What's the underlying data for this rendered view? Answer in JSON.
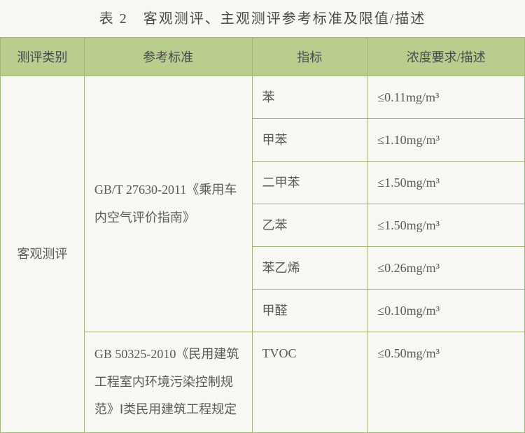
{
  "title": "表 2　客观测评、主观测评参考标准及限值/描述",
  "columns": [
    "测评类别",
    "参考标准",
    "指标",
    "浓度要求/描述"
  ],
  "category": "客观测评",
  "standard1": "GB/T 27630-2011《乘用车内空气评价指南》",
  "standard2": "GB 50325-2010《民用建筑工程室内环境污染控制规范》Ⅰ类民用建筑工程规定",
  "rows": [
    {
      "indicator": "苯",
      "value": "≤0.11mg/m³"
    },
    {
      "indicator": "甲苯",
      "value": "≤1.10mg/m³"
    },
    {
      "indicator": "二甲苯",
      "value": "≤1.50mg/m³"
    },
    {
      "indicator": "乙苯",
      "value": "≤1.50mg/m³"
    },
    {
      "indicator": "苯乙烯",
      "value": "≤0.26mg/m³"
    },
    {
      "indicator": "甲醛",
      "value": "≤0.10mg/m³"
    }
  ],
  "row7": {
    "indicator": "TVOC",
    "value": "≤0.50mg/m³"
  },
  "colors": {
    "header_bg": "#b9cd8f",
    "border": "#9fb57a",
    "page_bg": "#f8f7f3",
    "text": "#5a5a5a"
  },
  "fonts": {
    "title_size_pt": 15,
    "cell_size_pt": 13,
    "family": "SimSun / 宋体"
  },
  "column_widths_pct": [
    16,
    32,
    22,
    30
  ]
}
